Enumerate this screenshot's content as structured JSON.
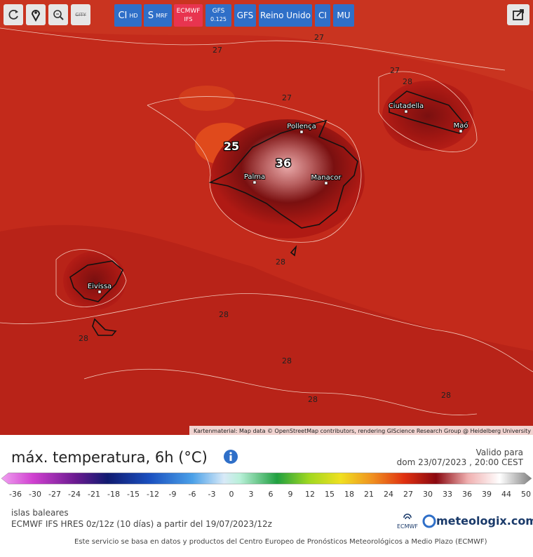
{
  "toolbar": {
    "city_icon": "CITY",
    "models": [
      {
        "main": "CI",
        "sub": "HD"
      },
      {
        "main": "S",
        "sub": "MRF"
      },
      {
        "main": "ECMWF",
        "sub": "IFS"
      },
      {
        "main": "GFS",
        "sub": "0.125"
      },
      {
        "main": "GFS"
      },
      {
        "main": "Reino Unido"
      },
      {
        "main": "CI"
      },
      {
        "main": "MU"
      }
    ]
  },
  "map": {
    "places": [
      "Pollença",
      "Palma",
      "Manacor",
      "Ciutadella",
      "Maó",
      "Eivissa"
    ],
    "contour_labels": [
      "27",
      "27",
      "27",
      "27",
      "28",
      "28",
      "28",
      "28",
      "28",
      "28",
      "28"
    ],
    "highlight_labels": [
      "25",
      "36"
    ],
    "attribution": "Kartenmaterial: Map data © OpenStreetMap contributors, rendering GIScience Research Group @ Heidelberg University"
  },
  "legend": {
    "title": "máx. temperatura, 6h (°C)",
    "valid_label": "Valido para",
    "valid_time": "dom 23/07/2023 , 20:00 CEST",
    "ticks": [
      "-36",
      "-30",
      "-27",
      "-24",
      "-21",
      "-18",
      "-15",
      "-12",
      "-9",
      "-6",
      "-3",
      "0",
      "3",
      "6",
      "9",
      "12",
      "15",
      "18",
      "21",
      "24",
      "27",
      "30",
      "33",
      "36",
      "39",
      "44",
      "50"
    ],
    "region": "islas baleares",
    "model": "ECMWF IFS HRES 0z/12z (10 días) a partir del 19/07/2023/12z",
    "ecmwf_logo": "ECMWF",
    "brand": "meteologix.com",
    "footer": "Este servicio se basa en datos y productos del Centro Europeo de Pronósticos Meteorológicos a Medio Plazo (ECMWF)"
  }
}
